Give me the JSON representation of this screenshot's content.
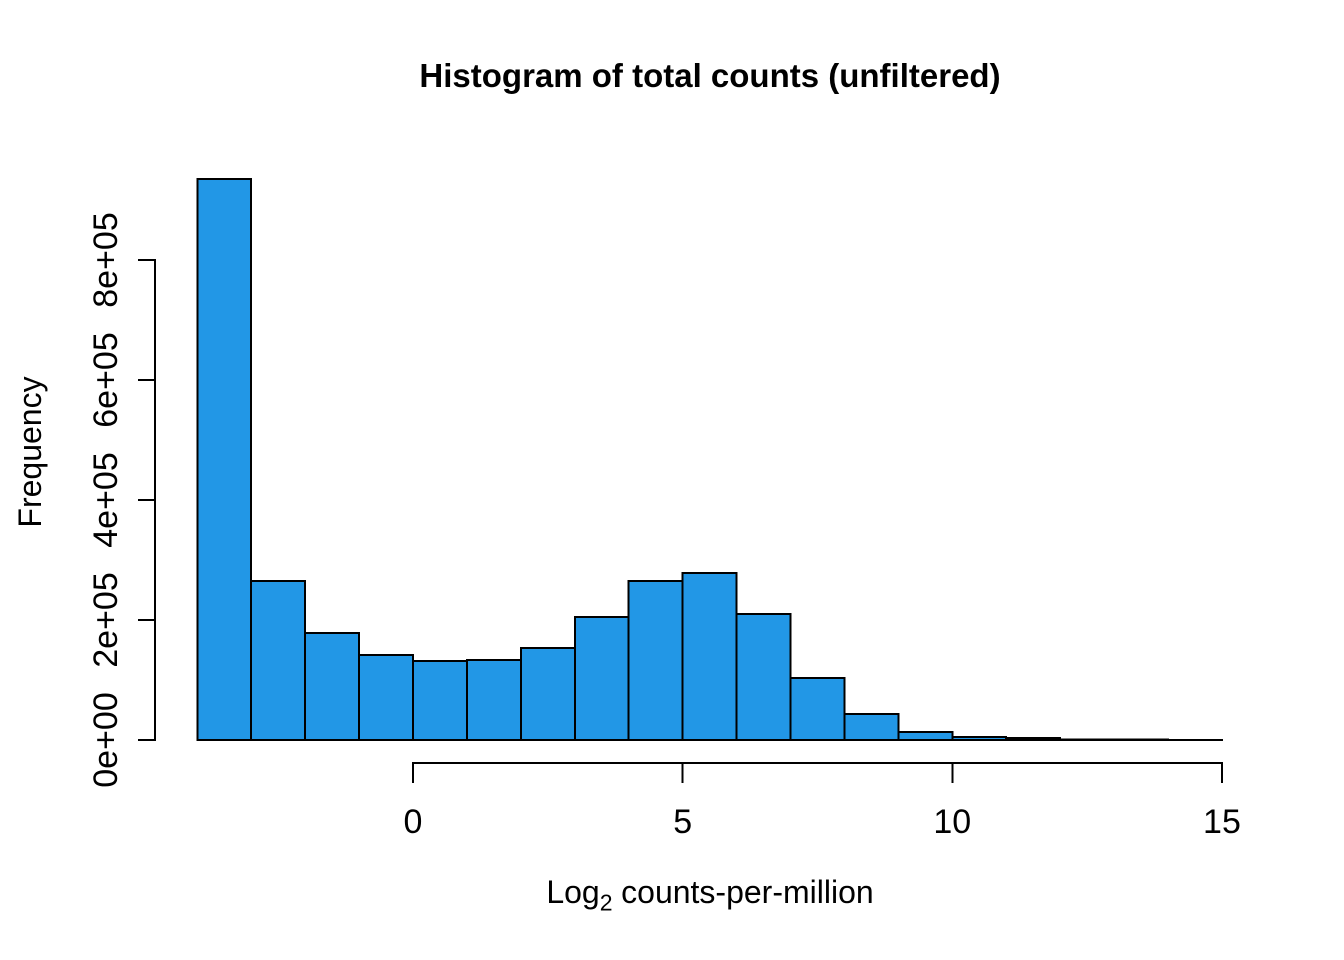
{
  "page": {
    "background_color": "#FFFFFF",
    "text_color": "#000000"
  },
  "chart_data": {
    "type": "bar",
    "subtype": "histogram",
    "title": "Histogram of total counts (unfiltered)",
    "xlabel_prefix": "Log",
    "xlabel_subscript": "2",
    "xlabel_rest": "counts-per-million",
    "ylabel": "Frequency",
    "bins": {
      "start": -4,
      "width": 1
    },
    "values": [
      935000,
      265000,
      178000,
      142000,
      132000,
      133000,
      153000,
      205000,
      265000,
      278000,
      210000,
      103000,
      43000,
      13000,
      5000,
      3000,
      1200,
      600,
      300
    ],
    "x_ticks": [
      {
        "value": 0,
        "label": "0"
      },
      {
        "value": 5,
        "label": "5"
      },
      {
        "value": 10,
        "label": "10"
      },
      {
        "value": 15,
        "label": "15"
      }
    ],
    "y_ticks": [
      {
        "value": 0,
        "label": "0e+00"
      },
      {
        "value": 200000,
        "label": "2e+05"
      },
      {
        "value": 400000,
        "label": "4e+05"
      },
      {
        "value": 600000,
        "label": "6e+05"
      },
      {
        "value": 800000,
        "label": "8e+05"
      }
    ],
    "xlim": [
      -4,
      15
    ],
    "ylim": [
      0,
      935000
    ],
    "grid": false,
    "legend_position": "none",
    "bar_fill_color": "#2297E6",
    "bar_border_color": "#000000",
    "axis_color": "#000000"
  }
}
